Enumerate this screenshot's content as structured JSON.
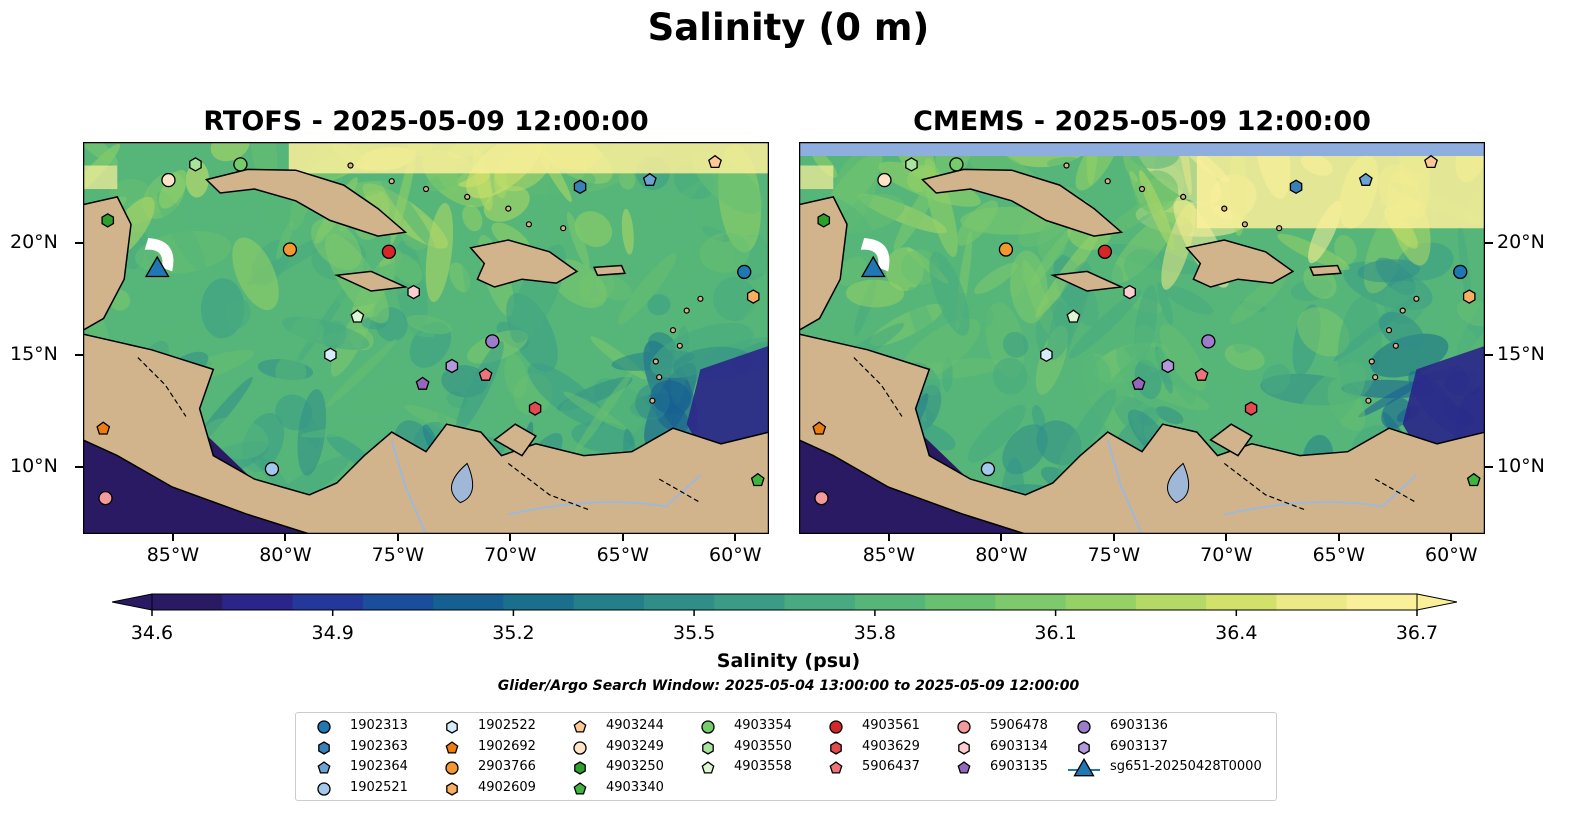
{
  "figure": {
    "title": "Salinity (0 m)",
    "colorbar_label": "Salinity (psu)",
    "subtitle": "Glider/Argo Search Window: 2025-05-04 13:00:00 to 2025-05-09 12:00:00"
  },
  "colors": {
    "land": "#d2b48c",
    "rivers_lakes": "#9fb8d8",
    "missing_band": "#8faee0",
    "colormap": [
      "#2a1a63",
      "#2b2589",
      "#23389a",
      "#1a4d9a",
      "#155f93",
      "#1a6f8d",
      "#237f8a",
      "#2f8e88",
      "#3b9c86",
      "#47aa80",
      "#56b679",
      "#68c071",
      "#7dc96b",
      "#96d166",
      "#b4d964",
      "#d2e16a",
      "#ecea86",
      "#fbf09a"
    ]
  },
  "chart_data": [
    {
      "type": "heatmap",
      "title": "RTOFS - 2025-05-09 12:00:00",
      "x_ticks": [
        "85°W",
        "80°W",
        "75°W",
        "70°W",
        "65°W",
        "60°W"
      ],
      "x_tick_values": [
        -85,
        -80,
        -75,
        -70,
        -65,
        -60
      ],
      "y_ticks": [
        "20°N",
        "15°N",
        "10°N"
      ],
      "y_tick_values": [
        20,
        15,
        10
      ],
      "xlim": [
        -89,
        -58.5
      ],
      "ylim": [
        7,
        24.5
      ],
      "variable": "Salinity (psu)"
    },
    {
      "type": "heatmap",
      "title": "CMEMS - 2025-05-09 12:00:00",
      "x_ticks": [
        "85°W",
        "80°W",
        "75°W",
        "70°W",
        "65°W",
        "60°W"
      ],
      "x_tick_values": [
        -85,
        -80,
        -75,
        -70,
        -65,
        -60
      ],
      "y_ticks": [
        "20°N",
        "15°N",
        "10°N"
      ],
      "y_tick_values": [
        20,
        15,
        10
      ],
      "xlim": [
        -89,
        -58.5
      ],
      "ylim": [
        7,
        24.5
      ],
      "variable": "Salinity (psu)"
    },
    {
      "type": "colorbar",
      "range": [
        34.6,
        36.7
      ],
      "ticks": [
        "34.6",
        "34.9",
        "35.2",
        "35.5",
        "35.8",
        "36.1",
        "36.4",
        "36.7"
      ],
      "tick_values": [
        34.6,
        34.9,
        35.2,
        35.5,
        35.8,
        36.1,
        36.4,
        36.7
      ],
      "extend": "both"
    },
    {
      "type": "scatter",
      "markers": [
        {
          "id": "1902313",
          "marker": "circle",
          "color": "#1f77b4",
          "lon": -59.6,
          "lat": 18.7
        },
        {
          "id": "1902363",
          "marker": "hexagon",
          "color": "#3a7fb8",
          "lon": -66.9,
          "lat": 22.5
        },
        {
          "id": "1902364",
          "marker": "pentagon",
          "color": "#6ba3d4",
          "lon": -63.8,
          "lat": 22.8
        },
        {
          "id": "1902521",
          "marker": "circle",
          "color": "#a4c8ec",
          "lon": -80.6,
          "lat": 9.9
        },
        {
          "id": "1902522",
          "marker": "hexagon",
          "color": "#d4ecfb",
          "lon": -78.0,
          "lat": 15.0
        },
        {
          "id": "1902692",
          "marker": "pentagon",
          "color": "#ef7d0e",
          "lon": -88.1,
          "lat": 11.7
        },
        {
          "id": "2903766",
          "marker": "circle",
          "color": "#f59630",
          "lon": -79.8,
          "lat": 19.7
        },
        {
          "id": "4902609",
          "marker": "hexagon",
          "color": "#fbae62",
          "lon": -59.2,
          "lat": 17.6
        },
        {
          "id": "4903244",
          "marker": "pentagon",
          "color": "#fdc796",
          "lon": -60.9,
          "lat": 23.6
        },
        {
          "id": "4903249",
          "marker": "circle",
          "color": "#fde4c9",
          "lon": -85.2,
          "lat": 22.8
        },
        {
          "id": "4903250",
          "marker": "hexagon",
          "color": "#2c9f2c",
          "lon": -87.9,
          "lat": 21.0
        },
        {
          "id": "4903340",
          "marker": "pentagon",
          "color": "#3fb53f",
          "lon": -59.0,
          "lat": 9.4
        },
        {
          "id": "4903354",
          "marker": "circle",
          "color": "#74cc6a",
          "lon": -82.0,
          "lat": 23.5
        },
        {
          "id": "4903550",
          "marker": "hexagon",
          "color": "#a9e39c",
          "lon": -84.0,
          "lat": 23.5
        },
        {
          "id": "4903558",
          "marker": "pentagon",
          "color": "#dcf7d2",
          "lon": -76.8,
          "lat": 16.7
        },
        {
          "id": "4903561",
          "marker": "circle",
          "color": "#d62728",
          "lon": -75.4,
          "lat": 19.6
        },
        {
          "id": "4903629",
          "marker": "hexagon",
          "color": "#e24a4b",
          "lon": -68.9,
          "lat": 12.6
        },
        {
          "id": "5906437",
          "marker": "pentagon",
          "color": "#ef7278",
          "lon": -71.1,
          "lat": 14.1
        },
        {
          "id": "5906478",
          "marker": "circle",
          "color": "#f4999c",
          "lon": -88.0,
          "lat": 8.6
        },
        {
          "id": "6903134",
          "marker": "hexagon",
          "color": "#fccdd0",
          "lon": -74.3,
          "lat": 17.8
        },
        {
          "id": "6903135",
          "marker": "pentagon",
          "color": "#9467bd",
          "lon": -73.9,
          "lat": 13.7
        },
        {
          "id": "6903136",
          "marker": "circle",
          "color": "#9e7ccc",
          "lon": -70.8,
          "lat": 15.6
        },
        {
          "id": "6903137",
          "marker": "hexagon",
          "color": "#b398dc",
          "lon": -72.6,
          "lat": 14.5
        },
        {
          "id": "sg651-20250428T0000",
          "marker": "triangle",
          "color": "#1f77b4",
          "lon": -85.7,
          "lat": 18.9
        }
      ]
    }
  ],
  "legend": {
    "columns": [
      [
        {
          "label": "1902313",
          "key": 0
        },
        {
          "label": "1902363",
          "key": 1
        },
        {
          "label": "1902364",
          "key": 2
        },
        {
          "label": "1902521",
          "key": 3
        }
      ],
      [
        {
          "label": "1902522",
          "key": 4
        },
        {
          "label": "1902692",
          "key": 5
        },
        {
          "label": "2903766",
          "key": 6
        },
        {
          "label": "4902609",
          "key": 7
        }
      ],
      [
        {
          "label": "4903244",
          "key": 8
        },
        {
          "label": "4903249",
          "key": 9
        },
        {
          "label": "4903250",
          "key": 10
        },
        {
          "label": "4903340",
          "key": 11
        }
      ],
      [
        {
          "label": "4903354",
          "key": 12
        },
        {
          "label": "4903550",
          "key": 13
        },
        {
          "label": "4903558",
          "key": 14
        }
      ],
      [
        {
          "label": "4903561",
          "key": 15
        },
        {
          "label": "4903629",
          "key": 16
        },
        {
          "label": "5906437",
          "key": 17
        }
      ],
      [
        {
          "label": "5906478",
          "key": 18
        },
        {
          "label": "6903134",
          "key": 19
        },
        {
          "label": "6903135",
          "key": 20
        }
      ],
      [
        {
          "label": "6903136",
          "key": 21
        },
        {
          "label": "6903137",
          "key": 22
        },
        {
          "label": "sg651-20250428T0000",
          "key": 23
        }
      ]
    ]
  }
}
